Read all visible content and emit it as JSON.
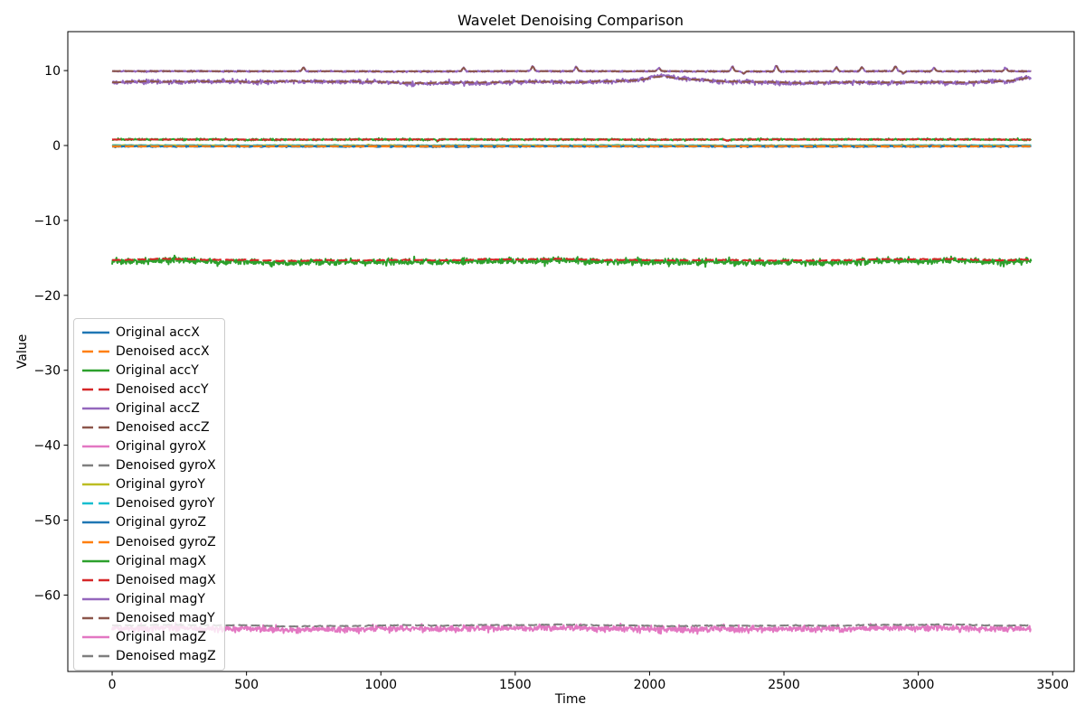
{
  "chart_data": {
    "type": "line",
    "title": "Wavelet Denoising Comparison",
    "xlabel": "Time",
    "ylabel": "Value",
    "xlim": [
      -165,
      3580
    ],
    "ylim": [
      -70.2,
      15.2
    ],
    "x_range": [
      0,
      3420
    ],
    "grid": false,
    "legend_position": "center left",
    "background": "#ffffff",
    "frame_color": "#000000",
    "xticks": [
      {
        "v": 0,
        "label": "0"
      },
      {
        "v": 500,
        "label": "500"
      },
      {
        "v": 1000,
        "label": "1000"
      },
      {
        "v": 1500,
        "label": "1500"
      },
      {
        "v": 2000,
        "label": "2000"
      },
      {
        "v": 2500,
        "label": "2500"
      },
      {
        "v": 3000,
        "label": "3000"
      },
      {
        "v": 3500,
        "label": "3500"
      }
    ],
    "yticks": [
      {
        "v": 10,
        "label": "10"
      },
      {
        "v": 0,
        "label": "0"
      },
      {
        "v": -10,
        "label": "−10"
      },
      {
        "v": -20,
        "label": "−20"
      },
      {
        "v": -30,
        "label": "−30"
      },
      {
        "v": -40,
        "label": "−40"
      },
      {
        "v": -50,
        "label": "−50"
      },
      {
        "v": -60,
        "label": "−60"
      }
    ],
    "series": [
      {
        "name": "Original accX",
        "color": "#1f77b4",
        "dash": false,
        "base": -0.13,
        "noise": 0.045,
        "wander": 0.02,
        "wseed": 1
      },
      {
        "name": "Denoised accX",
        "color": "#ff7f0e",
        "dash": true,
        "base": -0.13,
        "noise": 0.01,
        "wander": 0.015,
        "wseed": 1
      },
      {
        "name": "Original accY",
        "color": "#2ca02c",
        "dash": false,
        "base": 0.8,
        "noise": 0.055,
        "wander": 0.03,
        "wseed": 2,
        "spikes": [
          {
            "x": 1210,
            "h": -0.22
          },
          {
            "x": 2290,
            "h": -0.18
          }
        ]
      },
      {
        "name": "Denoised accY",
        "color": "#d62728",
        "dash": true,
        "base": 0.8,
        "noise": 0.012,
        "wander": 0.025,
        "wseed": 2,
        "spikes": [
          {
            "x": 1210,
            "h": -0.18
          },
          {
            "x": 2290,
            "h": -0.15
          }
        ]
      },
      {
        "name": "Original accZ",
        "color": "#9467bd",
        "dash": false,
        "base": 9.9,
        "noise": 0.045,
        "wander": 0.025,
        "wseed": 3,
        "spikes": [
          {
            "x": 712,
            "h": 0.55
          },
          {
            "x": 1308,
            "h": 0.5
          },
          {
            "x": 1565,
            "h": 0.7
          },
          {
            "x": 1727,
            "h": 0.6
          },
          {
            "x": 2035,
            "h": 0.45
          },
          {
            "x": 2308,
            "h": 0.65
          },
          {
            "x": 2350,
            "h": -0.35
          },
          {
            "x": 2472,
            "h": 0.8
          },
          {
            "x": 2695,
            "h": 0.55
          },
          {
            "x": 2790,
            "h": 0.6
          },
          {
            "x": 2915,
            "h": 0.7
          },
          {
            "x": 2945,
            "h": -0.3
          },
          {
            "x": 3058,
            "h": 0.5
          },
          {
            "x": 3325,
            "h": 0.45
          }
        ]
      },
      {
        "name": "Denoised accZ",
        "color": "#8c564b",
        "dash": true,
        "base": 9.92,
        "noise": 0.012,
        "wander": 0.02,
        "wseed": 3,
        "spikes": [
          {
            "x": 712,
            "h": 0.47
          },
          {
            "x": 1308,
            "h": 0.43
          },
          {
            "x": 1565,
            "h": 0.6
          },
          {
            "x": 1727,
            "h": 0.51
          },
          {
            "x": 2035,
            "h": 0.38
          },
          {
            "x": 2308,
            "h": 0.55
          },
          {
            "x": 2350,
            "h": -0.3
          },
          {
            "x": 2472,
            "h": 0.68
          },
          {
            "x": 2695,
            "h": 0.47
          },
          {
            "x": 2790,
            "h": 0.51
          },
          {
            "x": 2915,
            "h": 0.6
          },
          {
            "x": 2945,
            "h": -0.26
          },
          {
            "x": 3058,
            "h": 0.43
          },
          {
            "x": 3325,
            "h": 0.38
          }
        ]
      },
      {
        "name": "Original gyroX",
        "color": "#e377c2",
        "dash": false,
        "base": -0.03,
        "noise": 0.035,
        "wander": 0.015,
        "wseed": 4
      },
      {
        "name": "Denoised gyroX",
        "color": "#7f7f7f",
        "dash": true,
        "base": -0.03,
        "noise": 0.008,
        "wander": 0.012,
        "wseed": 4
      },
      {
        "name": "Original gyroY",
        "color": "#bcbd22",
        "dash": false,
        "base": 0.02,
        "noise": 0.035,
        "wander": 0.015,
        "wseed": 5
      },
      {
        "name": "Denoised gyroY",
        "color": "#17becf",
        "dash": true,
        "base": 0.02,
        "noise": 0.008,
        "wander": 0.012,
        "wseed": 5
      },
      {
        "name": "Original gyroZ",
        "color": "#1f77b4",
        "dash": false,
        "base": -0.08,
        "noise": 0.04,
        "wander": 0.015,
        "wseed": 6
      },
      {
        "name": "Denoised gyroZ",
        "color": "#ff7f0e",
        "dash": true,
        "base": -0.08,
        "noise": 0.01,
        "wander": 0.012,
        "wseed": 6
      },
      {
        "name": "Original magX",
        "color": "#2ca02c",
        "dash": false,
        "base": -15.5,
        "noise": 0.21,
        "wander": 0.17,
        "wseed": 7
      },
      {
        "name": "Denoised magX",
        "color": "#d62728",
        "dash": true,
        "base": -15.27,
        "noise": 0.03,
        "wander": 0.14,
        "wseed": 7
      },
      {
        "name": "Original magY",
        "color": "#9467bd",
        "dash": false,
        "base": 8.45,
        "noise": 0.13,
        "wander": 0.18,
        "wseed": 8,
        "bumps": [
          {
            "x": 2040,
            "w": 60,
            "h": 0.5
          },
          {
            "x": 2070,
            "w": 160,
            "h": 0.28
          },
          {
            "x": 3408,
            "w": 45,
            "h": 0.5
          }
        ]
      },
      {
        "name": "Denoised magY",
        "color": "#8c564b",
        "dash": true,
        "base": 8.5,
        "noise": 0.03,
        "wander": 0.16,
        "wseed": 8,
        "bumps": [
          {
            "x": 2040,
            "w": 60,
            "h": 0.4
          },
          {
            "x": 2070,
            "w": 160,
            "h": 0.22
          },
          {
            "x": 3408,
            "w": 45,
            "h": 0.4
          }
        ]
      },
      {
        "name": "Original magZ",
        "color": "#e377c2",
        "dash": false,
        "base": -64.5,
        "noise": 0.21,
        "wander": 0.14,
        "wseed": 9
      },
      {
        "name": "Denoised magZ",
        "color": "#7f7f7f",
        "dash": true,
        "base": -64.05,
        "noise": 0.03,
        "wander": 0.11,
        "wseed": 9
      }
    ]
  }
}
